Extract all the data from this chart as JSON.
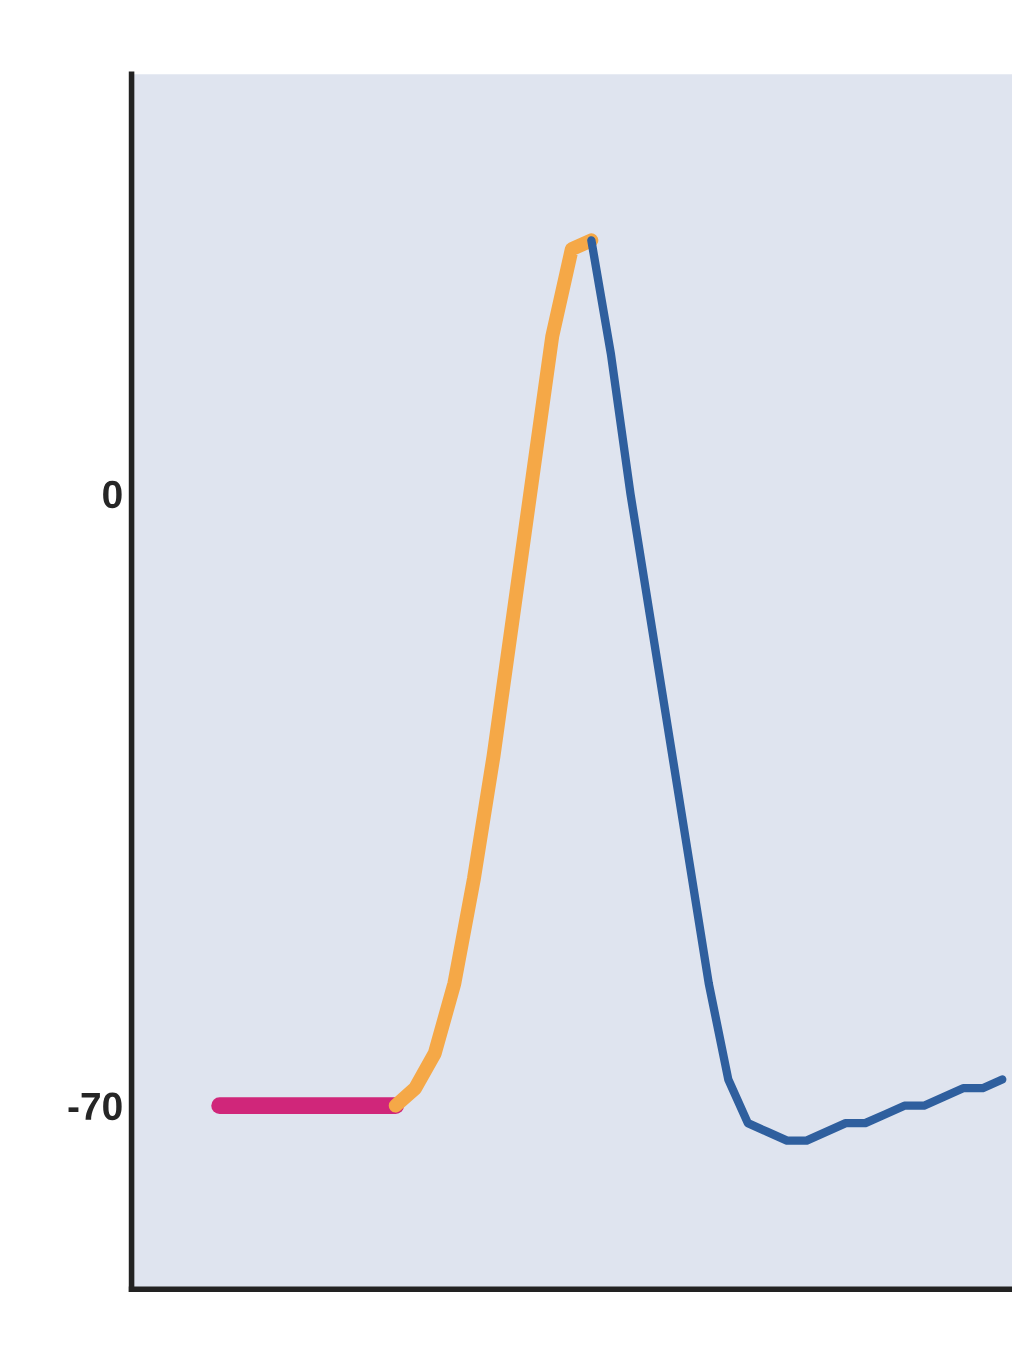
{
  "chart_data": {
    "type": "line",
    "categories": [
      null,
      null,
      null,
      null,
      null,
      null,
      null,
      null,
      null,
      null,
      null,
      null,
      null,
      null,
      null,
      null,
      null,
      null,
      null,
      null,
      null,
      null,
      null,
      null,
      null,
      null,
      null,
      null,
      null,
      null,
      null,
      null,
      null,
      null,
      null,
      null,
      null,
      null,
      null,
      null,
      null,
      null,
      null,
      null,
      null
    ],
    "series": [
      {
        "color": "#d0267a",
        "values": [
          null,
          null,
          null,
          null,
          -70,
          -70,
          -70,
          -70,
          -70,
          -70,
          -70,
          -70,
          -70,
          -70,
          null,
          null,
          null,
          null,
          null,
          null,
          null,
          null,
          null,
          null,
          null,
          null,
          null,
          null,
          null,
          null,
          null,
          null,
          null,
          null,
          null,
          null,
          null,
          null,
          null,
          null,
          null,
          null,
          null,
          null,
          null
        ]
      },
      {
        "color": "#f5a847",
        "values": [
          null,
          null,
          null,
          null,
          null,
          null,
          null,
          null,
          null,
          null,
          null,
          null,
          null,
          -70,
          -68,
          -64,
          -56,
          -44,
          -30,
          -14,
          2,
          18,
          28,
          29,
          null,
          null,
          null,
          null,
          null,
          null,
          null,
          null,
          null,
          null,
          null,
          null,
          null,
          null,
          null,
          null,
          null,
          null,
          null,
          null,
          null
        ]
      },
      {
        "color": "#2f5f9e",
        "values": [
          null,
          null,
          null,
          null,
          null,
          null,
          null,
          null,
          null,
          null,
          null,
          null,
          null,
          null,
          null,
          null,
          null,
          null,
          null,
          null,
          null,
          null,
          null,
          29,
          16,
          0,
          -14,
          -28,
          -42,
          -56,
          -67,
          -72,
          -73,
          -74,
          -74,
          -73,
          -72,
          -72,
          -71,
          -70,
          -70,
          -69,
          -68,
          -68,
          -67
        ]
      }
    ],
    "ylim": [
      -91,
      48
    ],
    "yticks": [
      0,
      -70
    ],
    "tick_labels": "y",
    "grid": false,
    "legend": false
  }
}
